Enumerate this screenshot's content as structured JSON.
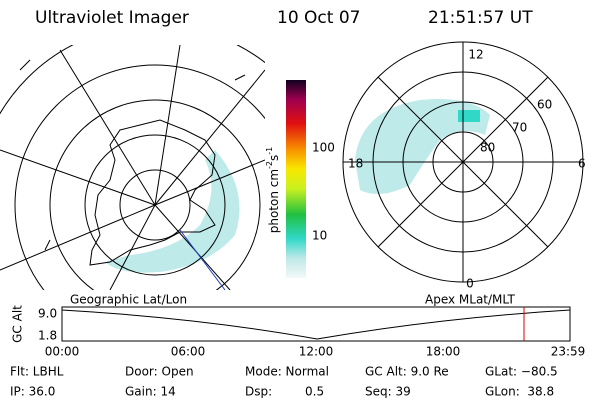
{
  "header": {
    "instrument": "Ultraviolet Imager",
    "date": "10 Oct 07",
    "time": "21:51:57 UT"
  },
  "colorbar": {
    "ticks": [
      "100",
      "10"
    ],
    "unit": "photon cm",
    "unit_exp1": "-2",
    "unit_s": "s",
    "unit_exp2": "-1"
  },
  "polar_plot": {
    "mlt_labels": {
      "top": "12",
      "left": "18",
      "right": "6",
      "bottom": "0"
    },
    "lat_labels": [
      "60",
      "70",
      "80"
    ]
  },
  "map_titles": {
    "left": "Geographic Lat/Lon",
    "right": "Apex MLat/MLT"
  },
  "altitude_panel": {
    "axis_label": "GC Alt",
    "y_labels": [
      "9.0",
      "1.8"
    ],
    "x_labels": [
      "00:00",
      "06:00",
      "12:00",
      "18:00",
      "23:59"
    ]
  },
  "status": {
    "row1": [
      "Flt: LBHL",
      "Door: Open",
      "Mode: Normal",
      "GC Alt: 9.0 Re",
      "GLat: −80.5"
    ],
    "row2": [
      "IP: 36.0",
      "Gain: 14",
      "Dsp:",
      "Seq: 39",
      "GLon:  38.8"
    ],
    "dsp_value": "0.5"
  }
}
